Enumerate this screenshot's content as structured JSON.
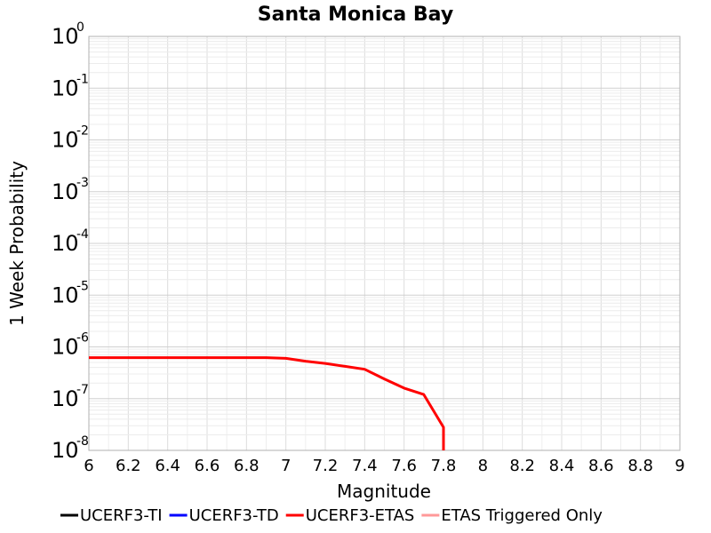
{
  "chart_data": {
    "type": "line",
    "title": "Santa Monica Bay",
    "xlabel": "Magnitude",
    "ylabel": "1 Week Probability",
    "xlim": [
      6,
      9
    ],
    "ylim": [
      1e-08,
      1
    ],
    "yscale": "log",
    "grid": true,
    "legend_position": "bottom",
    "x_ticks": [
      "6",
      "6.2",
      "6.4",
      "6.6",
      "6.8",
      "7",
      "7.2",
      "7.4",
      "7.6",
      "7.8",
      "8",
      "8.2",
      "8.4",
      "8.6",
      "8.8",
      "9"
    ],
    "y_ticks": [
      {
        "base": "10",
        "exp": "0"
      },
      {
        "base": "10",
        "exp": "-1"
      },
      {
        "base": "10",
        "exp": "-2"
      },
      {
        "base": "10",
        "exp": "-3"
      },
      {
        "base": "10",
        "exp": "-4"
      },
      {
        "base": "10",
        "exp": "-5"
      },
      {
        "base": "10",
        "exp": "-6"
      },
      {
        "base": "10",
        "exp": "-7"
      },
      {
        "base": "10",
        "exp": "-8"
      }
    ],
    "series": [
      {
        "name": "UCERF3-TI",
        "color": "#000000",
        "x": [],
        "y": []
      },
      {
        "name": "UCERF3-TD",
        "color": "#0000ff",
        "x": [],
        "y": []
      },
      {
        "name": "UCERF3-ETAS",
        "color": "#ff0000",
        "x": [
          6.0,
          6.1,
          6.2,
          6.3,
          6.4,
          6.5,
          6.6,
          6.7,
          6.8,
          6.9,
          7.0,
          7.1,
          7.2,
          7.3,
          7.4,
          7.5,
          7.6,
          7.7,
          7.8,
          7.8
        ],
        "y": [
          6.2e-07,
          6.2e-07,
          6.2e-07,
          6.2e-07,
          6.2e-07,
          6.2e-07,
          6.2e-07,
          6.2e-07,
          6.2e-07,
          6.2e-07,
          6e-07,
          5.3e-07,
          4.8e-07,
          4.2e-07,
          3.7e-07,
          2.4e-07,
          1.6e-07,
          1.2e-07,
          2.8e-08,
          1e-08
        ]
      },
      {
        "name": "ETAS Triggered Only",
        "color": "#ff9999",
        "x": [],
        "y": []
      }
    ]
  }
}
